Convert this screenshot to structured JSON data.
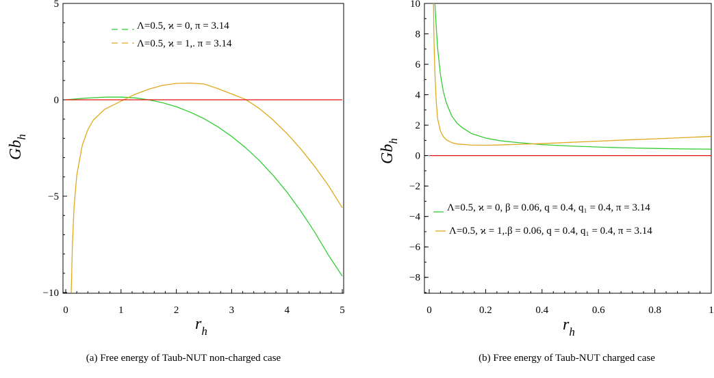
{
  "figure": {
    "panels": [
      {
        "caption": "(a) Free energy of Taub-NUT non-charged case",
        "ylabel_main": "Gb",
        "ylabel_sub": "h",
        "xlabel_main": "r",
        "xlabel_sub": "h",
        "legend": [
          {
            "label": "Λ=0.5,  ϰ = 0, π = 3.14",
            "color": "#33cc33"
          },
          {
            "label": "Λ=0.5, ϰ = 1,. π = 3.14",
            "color": "#e0a81c"
          }
        ]
      },
      {
        "caption": "(b) Free energy of Taub-NUT charged case",
        "ylabel_main": "Gb",
        "ylabel_sub": "h",
        "xlabel_main": "r",
        "xlabel_sub": "h",
        "legend": [
          {
            "label": "Λ=0.5, ϰ = 0, β = 0.06, q = 0.4, q₁ = 0.4, π = 3.14",
            "color": "#33cc33"
          },
          {
            "label": "Λ=0.5, ϰ = 1,.β = 0.06, q = 0.4, q₁ = 0.4, π = 3.14",
            "color": "#e0a81c"
          }
        ]
      }
    ]
  },
  "chart_data": [
    {
      "type": "line",
      "xlim": [
        0,
        5
      ],
      "ylim": [
        -10,
        5
      ],
      "xticks": [
        "0",
        "1",
        "2",
        "3",
        "4",
        "5"
      ],
      "yticks": [
        "−10",
        "−5",
        "0",
        "5"
      ],
      "series": [
        {
          "name": "Λ=0.5,  ϰ = 0, π = 3.14",
          "color": "#33cc33",
          "x": [
            0,
            0.25,
            0.5,
            0.75,
            1.0,
            1.25,
            1.5,
            1.75,
            2.0,
            2.25,
            2.5,
            2.75,
            3.0,
            3.25,
            3.5,
            3.75,
            4.0,
            4.25,
            4.5,
            4.75,
            5.0
          ],
          "y": [
            0,
            0.06,
            0.11,
            0.14,
            0.14,
            0.1,
            0.0,
            -0.15,
            -0.36,
            -0.64,
            -0.98,
            -1.4,
            -1.9,
            -2.48,
            -3.15,
            -3.92,
            -4.79,
            -5.77,
            -6.86,
            -8.06,
            -9.15
          ]
        },
        {
          "name": "Λ=0.5, ϰ = 1,. π = 3.14",
          "color": "#e0a81c",
          "x": [
            0.1,
            0.12,
            0.15,
            0.2,
            0.3,
            0.4,
            0.5,
            0.7,
            1.0,
            1.25,
            1.5,
            1.75,
            2.0,
            2.25,
            2.5,
            2.75,
            3.0,
            3.25,
            3.5,
            3.75,
            4.0,
            4.25,
            4.5,
            4.75,
            5.0
          ],
          "y": [
            -10,
            -7.6,
            -5.6,
            -3.9,
            -2.35,
            -1.55,
            -1.05,
            -0.5,
            -0.07,
            0.28,
            0.55,
            0.75,
            0.85,
            0.87,
            0.82,
            0.58,
            0.3,
            0.02,
            -0.45,
            -1.05,
            -1.75,
            -2.55,
            -3.45,
            -4.45,
            -5.6
          ]
        },
        {
          "name": "",
          "color": "#e01010",
          "x": [
            0,
            5
          ],
          "y": [
            0,
            0
          ]
        }
      ]
    },
    {
      "type": "line",
      "xlim": [
        0,
        1
      ],
      "ylim": [
        -9,
        10
      ],
      "xticks": [
        "0",
        "0.2",
        "0.4",
        "0.6",
        "0.8",
        "1"
      ],
      "yticks": [
        "−8",
        "−6",
        "−4",
        "−2",
        "0",
        "2",
        "4",
        "6",
        "8",
        "10"
      ],
      "series": [
        {
          "name": "Λ=0.5, ϰ = 0, β = 0.06, q = 0.4, q₁ = 0.4, π = 3.14",
          "color": "#33cc33",
          "x": [
            0.02,
            0.025,
            0.03,
            0.04,
            0.05,
            0.06,
            0.08,
            0.1,
            0.12,
            0.15,
            0.2,
            0.25,
            0.3,
            0.4,
            0.5,
            0.6,
            0.7,
            0.8,
            0.9,
            1.0
          ],
          "y": [
            10,
            8.4,
            7.0,
            5.3,
            4.2,
            3.5,
            2.6,
            2.1,
            1.8,
            1.45,
            1.15,
            0.98,
            0.88,
            0.72,
            0.63,
            0.56,
            0.51,
            0.47,
            0.44,
            0.42
          ]
        },
        {
          "name": "Λ=0.5, ϰ = 1,.β = 0.06, q = 0.4, q₁ = 0.4, π = 3.14",
          "color": "#e0a81c",
          "x": [
            0.015,
            0.017,
            0.02,
            0.025,
            0.03,
            0.04,
            0.05,
            0.06,
            0.08,
            0.1,
            0.15,
            0.2,
            0.25,
            0.3,
            0.4,
            0.5,
            0.6,
            0.7,
            0.8,
            0.9,
            1.0
          ],
          "y": [
            10,
            7.5,
            5.5,
            3.5,
            2.4,
            1.6,
            1.25,
            1.05,
            0.85,
            0.76,
            0.69,
            0.68,
            0.7,
            0.73,
            0.79,
            0.87,
            0.95,
            1.03,
            1.1,
            1.18,
            1.26
          ]
        },
        {
          "name": "",
          "color": "#e01010",
          "x": [
            0,
            1
          ],
          "y": [
            0,
            0
          ]
        }
      ]
    }
  ]
}
